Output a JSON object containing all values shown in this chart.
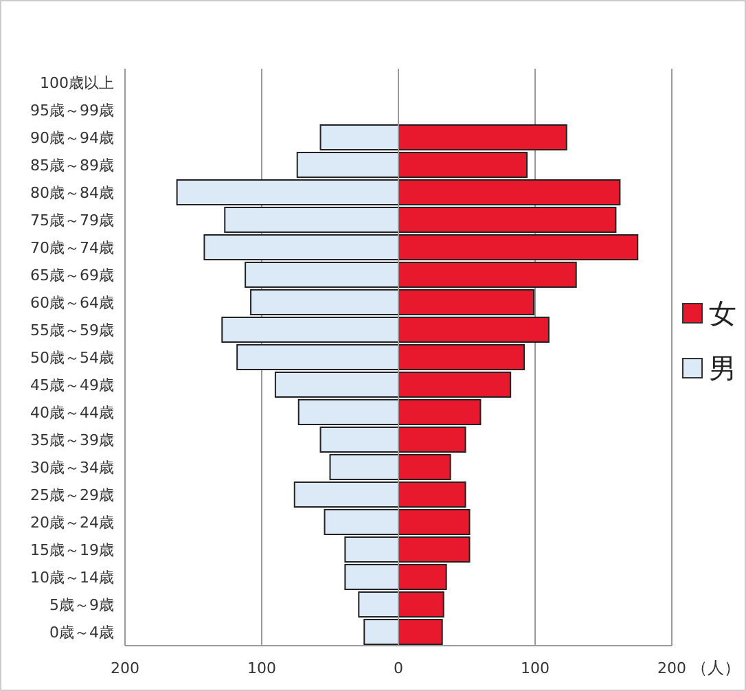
{
  "chart_data": {
    "type": "bar",
    "orientation": "horizontal",
    "stacked": true,
    "xlabel": "（人）",
    "categories": [
      "100歳以上",
      "95歳～99歳",
      "90歳～94歳",
      "85歳～89歳",
      "80歳～84歳",
      "75歳～79歳",
      "70歳～74歳",
      "65歳～69歳",
      "60歳～64歳",
      "55歳～59歳",
      "50歳～54歳",
      "45歳～49歳",
      "40歳～44歳",
      "35歳～39歳",
      "30歳～34歳",
      "25歳～29歳",
      "20歳～24歳",
      "15歳～19歳",
      "10歳～14歳",
      "5歳～9歳",
      "0歳～4歳"
    ],
    "series": [
      {
        "name": "女",
        "color": "#e8192c",
        "values": [
          0,
          0,
          123,
          94,
          162,
          159,
          175,
          130,
          99,
          110,
          92,
          82,
          60,
          49,
          38,
          49,
          52,
          52,
          35,
          33,
          32
        ]
      },
      {
        "name": "男",
        "color": "#dce9f7",
        "values": [
          0,
          0,
          -57,
          -74,
          -162,
          -127,
          -142,
          -112,
          -108,
          -129,
          -118,
          -90,
          -73,
          -57,
          -50,
          -76,
          -54,
          -39,
          -39,
          -29,
          -25
        ]
      }
    ],
    "xlim": [
      -200,
      200
    ],
    "xticks": [
      {
        "value": -200,
        "label": "200"
      },
      {
        "value": -100,
        "label": "100"
      },
      0,
      100,
      200
    ],
    "grid": "x",
    "legend": "right"
  }
}
